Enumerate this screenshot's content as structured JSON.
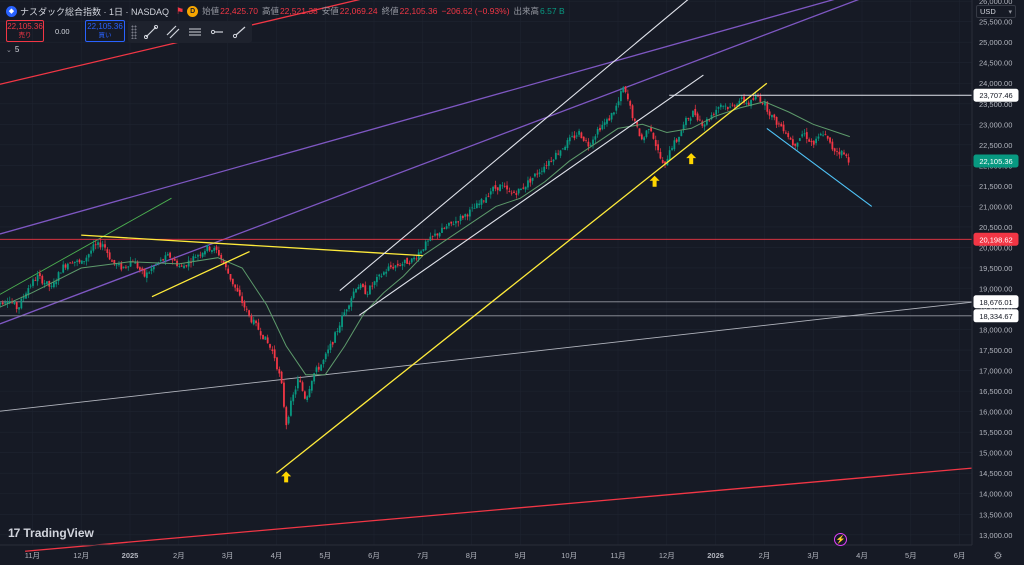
{
  "header": {
    "title": "ナスダック総合指数 · 1日 · NASDAQ",
    "open_label": "始値",
    "open": "22,425.70",
    "high_label": "高値",
    "high": "22,521.38",
    "low_label": "安値",
    "low": "22,069.24",
    "close_label": "終値",
    "close": "22,105.36",
    "change": "−206.62 (−0.93%)",
    "volume_label": "出来高",
    "volume": "6.57 B"
  },
  "trade": {
    "sell_price": "22,105.36",
    "sell_label": "売り",
    "spread": "0.00",
    "buy_price": "22,105.36",
    "buy_label": "買い"
  },
  "indicators": {
    "count": "5"
  },
  "currency": "USD",
  "logo_text": "TradingView",
  "colors": {
    "background": "#161a25",
    "up": "#089981",
    "down": "#f23645",
    "trend_yellow": "#ffeb3b",
    "channel_white": "#e0e3eb",
    "purple": "#7e57c2",
    "red_line": "#f23645",
    "green_line": "#4caf50",
    "cyan": "#4fc3f7",
    "gray": "#b2b5be"
  },
  "chart_data": {
    "type": "candlestick",
    "y_axis": {
      "range": [
        12800,
        26400
      ],
      "ticks": [
        "13,000.00",
        "13,500.00",
        "14,000.00",
        "14,500.00",
        "15,000.00",
        "15,500.00",
        "16,000.00",
        "16,500.00",
        "17,000.00",
        "17,500.00",
        "18,000.00",
        "18,500.00",
        "19,000.00",
        "19,500.00",
        "20,000.00",
        "20,500.00",
        "21,000.00",
        "21,500.00",
        "22,000.00",
        "22,500.00",
        "23,000.00",
        "23,500.00",
        "24,000.00",
        "24,500.00",
        "25,000.00",
        "25,500.00",
        "26,000.00"
      ],
      "highlight_labels": [
        {
          "value": 23707.46,
          "text": "23,707.46",
          "style": "white"
        },
        {
          "value": 22105.36,
          "text": "22,105.36",
          "style": "green"
        },
        {
          "value": 20198.62,
          "text": "20,198.62",
          "style": "red"
        },
        {
          "value": 18676.01,
          "text": "18,676.01",
          "style": "white"
        },
        {
          "value": 18334.67,
          "text": "18,334.67",
          "style": "white"
        }
      ]
    },
    "x_axis": {
      "labels": [
        {
          "text": "11月",
          "month": -2,
          "bold": false
        },
        {
          "text": "12月",
          "month": -1,
          "bold": false
        },
        {
          "text": "2025",
          "month": 0,
          "bold": true
        },
        {
          "text": "2月",
          "month": 1,
          "bold": false
        },
        {
          "text": "3月",
          "month": 2,
          "bold": false
        },
        {
          "text": "4月",
          "month": 3,
          "bold": false
        },
        {
          "text": "5月",
          "month": 4,
          "bold": false
        },
        {
          "text": "6月",
          "month": 5,
          "bold": false
        },
        {
          "text": "7月",
          "month": 6,
          "bold": false
        },
        {
          "text": "8月",
          "month": 7,
          "bold": false
        },
        {
          "text": "9月",
          "month": 8,
          "bold": false
        },
        {
          "text": "10月",
          "month": 9,
          "bold": false
        },
        {
          "text": "11月",
          "month": 10,
          "bold": false
        },
        {
          "text": "12月",
          "month": 11,
          "bold": false
        },
        {
          "text": "2026",
          "month": 12,
          "bold": true
        },
        {
          "text": "2月",
          "month": 13,
          "bold": false
        },
        {
          "text": "3月",
          "month": 14,
          "bold": false
        },
        {
          "text": "4月",
          "month": 15,
          "bold": false
        },
        {
          "text": "5月",
          "month": 16,
          "bold": false
        },
        {
          "text": "6月",
          "month": 17,
          "bold": false
        }
      ]
    },
    "price_path": [
      [
        -2.75,
        18600
      ],
      [
        -2.5,
        18750
      ],
      [
        -2.3,
        18500
      ],
      [
        -2.1,
        19000
      ],
      [
        -1.9,
        19300
      ],
      [
        -1.6,
        19000
      ],
      [
        -1.4,
        19500
      ],
      [
        -1.2,
        19700
      ],
      [
        -1.0,
        19600
      ],
      [
        -0.75,
        20000
      ],
      [
        -0.55,
        20100
      ],
      [
        -0.35,
        19600
      ],
      [
        -0.15,
        19500
      ],
      [
        0.05,
        19700
      ],
      [
        0.3,
        19300
      ],
      [
        0.55,
        19600
      ],
      [
        0.8,
        19800
      ],
      [
        1.05,
        19500
      ],
      [
        1.35,
        19800
      ],
      [
        1.6,
        20000
      ],
      [
        1.8,
        19900
      ],
      [
        2.0,
        19400
      ],
      [
        2.2,
        18900
      ],
      [
        2.45,
        18300
      ],
      [
        2.7,
        17900
      ],
      [
        2.95,
        17400
      ],
      [
        3.1,
        16700
      ],
      [
        3.2,
        15700
      ],
      [
        3.3,
        16200
      ],
      [
        3.45,
        16800
      ],
      [
        3.6,
        16300
      ],
      [
        3.75,
        16900
      ],
      [
        3.95,
        17200
      ],
      [
        4.15,
        17700
      ],
      [
        4.35,
        18300
      ],
      [
        4.5,
        18700
      ],
      [
        4.65,
        19100
      ],
      [
        4.85,
        18900
      ],
      [
        5.05,
        19200
      ],
      [
        5.3,
        19500
      ],
      [
        5.55,
        19600
      ],
      [
        5.8,
        19700
      ],
      [
        6.0,
        20000
      ],
      [
        6.25,
        20300
      ],
      [
        6.5,
        20500
      ],
      [
        6.75,
        20700
      ],
      [
        7.0,
        20900
      ],
      [
        7.2,
        21100
      ],
      [
        7.4,
        21400
      ],
      [
        7.6,
        21500
      ],
      [
        7.8,
        21300
      ],
      [
        8.0,
        21400
      ],
      [
        8.25,
        21700
      ],
      [
        8.5,
        22000
      ],
      [
        8.75,
        22300
      ],
      [
        9.0,
        22600
      ],
      [
        9.2,
        22800
      ],
      [
        9.4,
        22500
      ],
      [
        9.6,
        22900
      ],
      [
        9.8,
        23100
      ],
      [
        10.0,
        23500
      ],
      [
        10.1,
        23900
      ],
      [
        10.2,
        23600
      ],
      [
        10.35,
        23000
      ],
      [
        10.5,
        22600
      ],
      [
        10.65,
        23000
      ],
      [
        10.8,
        22400
      ],
      [
        10.95,
        21900
      ],
      [
        11.05,
        22400
      ],
      [
        11.2,
        22600
      ],
      [
        11.4,
        23100
      ],
      [
        11.55,
        23300
      ],
      [
        11.75,
        23000
      ],
      [
        11.9,
        23200
      ],
      [
        12.1,
        23500
      ],
      [
        12.3,
        23400
      ],
      [
        12.5,
        23600
      ],
      [
        12.7,
        23500
      ],
      [
        12.85,
        23700
      ],
      [
        13.0,
        23500
      ],
      [
        13.2,
        23100
      ],
      [
        13.4,
        22900
      ],
      [
        13.6,
        22500
      ],
      [
        13.8,
        22800
      ],
      [
        14.0,
        22500
      ],
      [
        14.2,
        22800
      ],
      [
        14.4,
        22400
      ],
      [
        14.6,
        22300
      ],
      [
        14.75,
        22105.36
      ]
    ],
    "moving_average": [
      [
        -2.75,
        18500
      ],
      [
        -2.0,
        18900
      ],
      [
        -1.0,
        19500
      ],
      [
        0.0,
        19650
      ],
      [
        1.0,
        19600
      ],
      [
        1.8,
        19750
      ],
      [
        2.3,
        19500
      ],
      [
        2.8,
        18600
      ],
      [
        3.2,
        17600
      ],
      [
        3.6,
        16900
      ],
      [
        4.0,
        16900
      ],
      [
        4.4,
        17600
      ],
      [
        4.8,
        18400
      ],
      [
        5.2,
        18900
      ],
      [
        5.6,
        19300
      ],
      [
        6.0,
        19800
      ],
      [
        6.5,
        20200
      ],
      [
        7.0,
        20600
      ],
      [
        7.5,
        21000
      ],
      [
        8.0,
        21200
      ],
      [
        8.5,
        21600
      ],
      [
        9.0,
        22100
      ],
      [
        9.5,
        22500
      ],
      [
        10.0,
        22900
      ],
      [
        10.5,
        23000
      ],
      [
        11.0,
        22800
      ],
      [
        11.5,
        22900
      ],
      [
        12.0,
        23200
      ],
      [
        12.5,
        23400
      ],
      [
        13.0,
        23550
      ],
      [
        13.5,
        23300
      ],
      [
        14.0,
        23000
      ],
      [
        14.5,
        22800
      ],
      [
        14.75,
        22700
      ]
    ],
    "drawn_lines": [
      {
        "style": "red",
        "points": [
          [
            -2.75,
            23950
          ],
          [
            11.7,
            28000
          ]
        ]
      },
      {
        "style": "red",
        "points": [
          [
            -2.15,
            12600
          ],
          [
            17.5,
            14650
          ]
        ]
      },
      {
        "style": "purple",
        "points": [
          [
            -2.75,
            20300
          ],
          [
            16.4,
            26700
          ]
        ]
      },
      {
        "style": "purple",
        "points": [
          [
            -2.75,
            18100
          ],
          [
            16.4,
            26700
          ]
        ]
      },
      {
        "style": "green",
        "points": [
          [
            -2.75,
            18800
          ],
          [
            0.85,
            21200
          ]
        ]
      },
      {
        "style": "yellow",
        "points": [
          [
            -1.0,
            20300
          ],
          [
            6.0,
            19800
          ]
        ]
      },
      {
        "style": "yellow",
        "points": [
          [
            0.45,
            18800
          ],
          [
            2.45,
            19900
          ]
        ]
      },
      {
        "style": "yellow",
        "points": [
          [
            3.0,
            14500
          ],
          [
            13.05,
            24000
          ]
        ]
      },
      {
        "style": "channel",
        "points": [
          [
            4.3,
            18950
          ],
          [
            12.0,
            26600
          ]
        ]
      },
      {
        "style": "channel",
        "points": [
          [
            4.7,
            18350
          ],
          [
            11.75,
            24200
          ]
        ]
      },
      {
        "style": "cyan",
        "points": [
          [
            13.05,
            22900
          ],
          [
            15.2,
            21000
          ]
        ]
      },
      {
        "style": "white_h",
        "points": [
          [
            11.05,
            23707.46
          ],
          [
            17.5,
            23707.46
          ]
        ]
      },
      {
        "style": "red_h",
        "points": [
          [
            -2.75,
            20198.62
          ],
          [
            17.5,
            20198.62
          ]
        ]
      },
      {
        "style": "gray_h",
        "points": [
          [
            -2.75,
            18676.01
          ],
          [
            17.5,
            18676.01
          ]
        ]
      },
      {
        "style": "gray_h",
        "points": [
          [
            -2.75,
            18334.67
          ],
          [
            17.5,
            18334.67
          ]
        ]
      },
      {
        "style": "gray_d",
        "points": [
          [
            -2.75,
            16000
          ],
          [
            17.5,
            18700
          ]
        ]
      }
    ],
    "markers": [
      {
        "type": "arrow_up",
        "month": 3.2,
        "value": 14400
      },
      {
        "type": "arrow_up",
        "month": 10.75,
        "value": 21600
      },
      {
        "type": "arrow_up",
        "month": 11.5,
        "value": 22150
      }
    ]
  }
}
